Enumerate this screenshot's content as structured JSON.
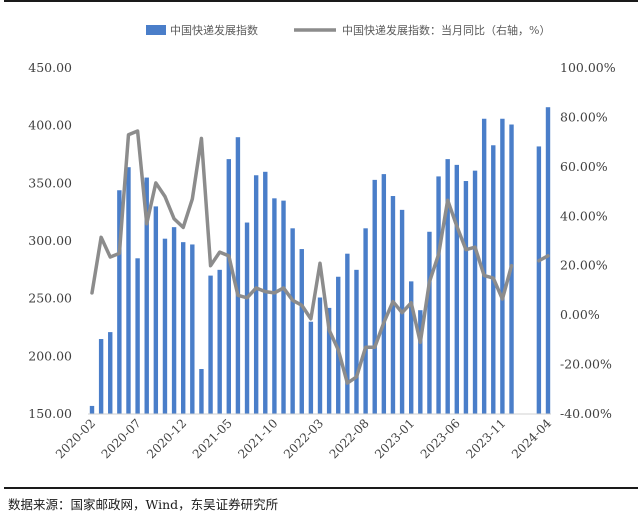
{
  "source_note": "数据来源：国家邮政网，Wind，东吴证券研究所",
  "chart_data": {
    "type": "bar+line",
    "title": "",
    "legend_position": "top",
    "grid": false,
    "x_tick_labels": [
      "2020-02",
      "2020-07",
      "2020-12",
      "2021-05",
      "2021-10",
      "2022-03",
      "2022-08",
      "2023-01",
      "2023-06",
      "2023-11",
      "2024-04"
    ],
    "x": [
      "2020-02",
      "2020-03",
      "2020-04",
      "2020-05",
      "2020-06",
      "2020-07",
      "2020-08",
      "2020-09",
      "2020-10",
      "2020-11",
      "2020-12",
      "2021-01",
      "2021-02",
      "2021-03",
      "2021-04",
      "2021-05",
      "2021-06",
      "2021-07",
      "2021-08",
      "2021-09",
      "2021-10",
      "2021-11",
      "2021-12",
      "2022-01",
      "2022-02",
      "2022-03",
      "2022-04",
      "2022-05",
      "2022-06",
      "2022-07",
      "2022-08",
      "2022-09",
      "2022-10",
      "2022-11",
      "2022-12",
      "2023-01",
      "2023-02",
      "2023-03",
      "2023-04",
      "2023-05",
      "2023-06",
      "2023-07",
      "2023-08",
      "2023-09",
      "2023-10",
      "2023-11",
      "2023-12",
      "2024-01",
      "2024-02",
      "2024-03",
      "2024-04"
    ],
    "y_left": {
      "ticks": [
        "150.00",
        "200.00",
        "250.00",
        "300.00",
        "350.00",
        "400.00",
        "450.00"
      ],
      "range": [
        150,
        450
      ]
    },
    "y_right": {
      "ticks": [
        "-40.00%",
        "-20.00%",
        "0.00%",
        "20.00%",
        "40.00%",
        "60.00%",
        "80.00%",
        "100.00%"
      ],
      "range": [
        -40,
        100
      ]
    },
    "series": [
      {
        "name": "中国快递发展指数",
        "type": "bar",
        "axis": "left",
        "color": "#4a7ec9",
        "values": [
          157,
          215,
          221,
          344,
          364,
          285,
          355,
          330,
          302,
          312,
          299,
          297,
          189,
          270,
          275,
          371,
          390,
          316,
          357,
          360,
          337,
          335,
          311,
          293,
          230,
          251,
          242,
          269,
          289,
          275,
          311,
          353,
          358,
          339,
          327,
          265,
          240,
          308,
          356,
          371,
          366,
          352,
          361,
          406,
          383,
          406,
          401,
          null,
          null,
          382,
          416
        ]
      },
      {
        "name": "中国快递发展指数：当月同比（右轴，%）",
        "type": "line",
        "axis": "right",
        "color": "#8c8c8c",
        "values": [
          9,
          31.5,
          23.5,
          25,
          73,
          74.5,
          37,
          53.5,
          48,
          39,
          35.5,
          47,
          71.5,
          20,
          25.5,
          24,
          8,
          7,
          11,
          9.5,
          9,
          11,
          6,
          4,
          -1.5,
          21,
          -6,
          -14,
          -27.5,
          -25,
          -13,
          -13,
          -3,
          5.5,
          1,
          5,
          -11,
          13.5,
          24.5,
          46.5,
          36,
          26.5,
          27.5,
          16,
          15,
          6.5,
          20,
          null,
          null,
          22,
          24
        ]
      }
    ]
  }
}
